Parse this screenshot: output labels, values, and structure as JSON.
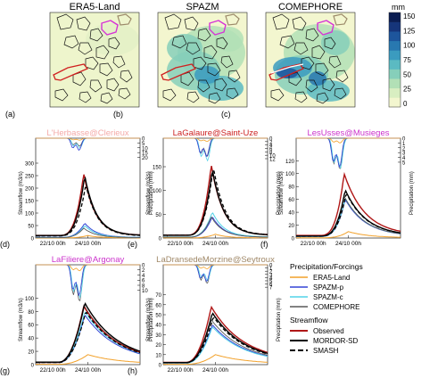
{
  "maps": [
    {
      "letter": "(a)",
      "title": "ERA5-Land",
      "variant": "era5"
    },
    {
      "letter": "(b)",
      "title": "SPAZM",
      "variant": "spazm"
    },
    {
      "letter": "(c)",
      "title": "COMEPHORE",
      "variant": "comephore"
    }
  ],
  "colorbar": {
    "unit": "mm",
    "ticks": [
      "150",
      "125",
      "100",
      "75",
      "50",
      "25",
      "0"
    ],
    "colors": [
      "#f3f6cf",
      "#d8eec1",
      "#b2e0b6",
      "#86cfba",
      "#5bbac2",
      "#3b9bbf",
      "#2878b0",
      "#1d559c",
      "#16357a",
      "#0b1d52"
    ]
  },
  "legend": {
    "forcing_title": "Precipitation/Forcings",
    "forcings": [
      {
        "label": "ERA5-Land",
        "color": "#f2a12a"
      },
      {
        "label": "SPAZM-p",
        "color": "#3344d6"
      },
      {
        "label": "SPAZM-c",
        "color": "#52d3e8"
      },
      {
        "label": "COMEPHORE",
        "color": "#595959"
      }
    ],
    "flow_title": "Streamflow",
    "flows": [
      {
        "label": "Observed",
        "color": "#b01818",
        "dash": ""
      },
      {
        "label": "MORDOR-SD",
        "color": "#000000",
        "dash": ""
      },
      {
        "label": "SMASH",
        "color": "#000000",
        "dash": "6,3"
      }
    ]
  },
  "chart_data": [
    {
      "type": "line",
      "letter": "(d)",
      "title": "L'Herbasse@Clerieux",
      "title_color": "#f4aaa8",
      "ylabel": "Streamflow (m3/s)",
      "y2label": "Precipitation (mm)",
      "xticks": [
        "22/10 00h",
        "24/10 00h"
      ],
      "yticks": [
        0,
        50,
        100,
        150,
        200,
        250,
        300
      ],
      "ylim": [
        0,
        400
      ],
      "y2ticks": [
        0,
        5,
        10,
        15,
        20
      ],
      "y2lim": [
        0,
        80
      ],
      "obs_peak": 260,
      "mordor_peak": 250,
      "smash_peak": 215,
      "era5_peak": 10,
      "spazmp_peak": 60,
      "spazmc_peak": 50,
      "come_peak": 40,
      "precip_scale": 2.1,
      "shape": "flashy"
    },
    {
      "type": "line",
      "letter": "(e)",
      "title": "LaGalaure@Saint-Uze",
      "title_color": "#cc2222",
      "ylabel": "Streamflow (m3/s)",
      "y2label": "Precipitation (mm)",
      "xticks": [
        "22/10 00h",
        "24/10 00h"
      ],
      "yticks": [
        0,
        50,
        100,
        150
      ],
      "ylim": [
        0,
        210
      ],
      "y2ticks": [
        0,
        2,
        4,
        6,
        8,
        10,
        12
      ],
      "y2lim": [
        0,
        45
      ],
      "obs_peak": 155,
      "mordor_peak": 145,
      "smash_peak": 150,
      "era5_peak": 8,
      "spazmp_peak": 45,
      "spazmc_peak": 55,
      "come_peak": 45,
      "precip_scale": 2.4,
      "shape": "flashy"
    },
    {
      "type": "line",
      "letter": "(f)",
      "title": "LesUsses@Musieges",
      "title_color": "#cc33cc",
      "ylabel": "Streamflow (m3/s)",
      "y2label": "Precipitation (mm)",
      "xticks": [
        "22/10 00h",
        "24/10 00h"
      ],
      "yticks": [
        0,
        20,
        40,
        60,
        80,
        100,
        120
      ],
      "ylim": [
        0,
        155
      ],
      "y2ticks": [
        0,
        1,
        2,
        3,
        4,
        5
      ],
      "y2lim": [
        0,
        16
      ],
      "obs_peak": 100,
      "mordor_peak": 75,
      "smash_peak": 70,
      "era5_peak": 10,
      "spazmp_peak": 60,
      "spazmc_peak": 62,
      "come_peak": 65,
      "precip_scale": 1.0,
      "shape": "medium"
    },
    {
      "type": "line",
      "letter": "(g)",
      "title": "LaFiliere@Argonay",
      "title_color": "#cc33cc",
      "ylabel": "Streamflow (m3/s)",
      "y2label": "Precipitation (mm)",
      "xticks": [
        "22/10 00h",
        "24/10 00h"
      ],
      "yticks": [
        0,
        20,
        40,
        60,
        80,
        100
      ],
      "ylim": [
        0,
        150
      ],
      "y2ticks": [
        0,
        2,
        4,
        6,
        8,
        10
      ],
      "y2lim": [
        0,
        30
      ],
      "obs_peak": 88,
      "mordor_peak": 93,
      "smash_peak": 80,
      "era5_peak": 15,
      "spazmp_peak": 75,
      "spazmc_peak": 80,
      "come_peak": 90,
      "precip_scale": 1.6,
      "shape": "slow"
    },
    {
      "type": "line",
      "letter": "(h)",
      "title": "LaDransedeMorzine@Seytroux",
      "title_color": "#a08868",
      "ylabel": "Streamflow (m3/s)",
      "y2label": "Precipitation (mm)",
      "xticks": [
        "22/10 00h",
        "24/10 00h"
      ],
      "yticks": [
        0,
        10,
        20,
        30,
        40,
        50,
        60,
        70
      ],
      "ylim": [
        0,
        100
      ],
      "y2ticks": [
        0,
        1,
        2,
        3,
        4,
        5,
        6,
        7
      ],
      "y2lim": [
        0,
        24
      ],
      "obs_peak": 58,
      "mordor_peak": 52,
      "smash_peak": 48,
      "era5_peak": 10,
      "spazmp_peak": 40,
      "spazmc_peak": 38,
      "come_peak": 45,
      "precip_scale": 1.3,
      "shape": "slow"
    }
  ]
}
